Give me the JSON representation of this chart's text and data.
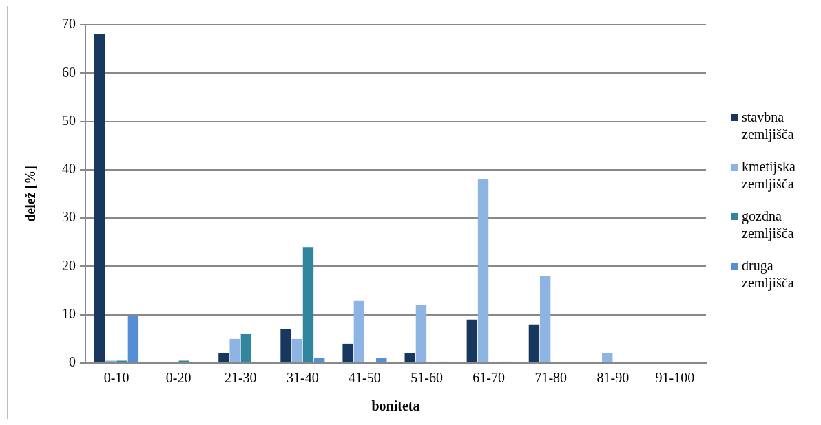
{
  "chart_data": {
    "type": "bar",
    "xlabel": "boniteta",
    "ylabel": "delež [%]",
    "categories": [
      "0-10",
      "0-20",
      "21-30",
      "31-40",
      "41-50",
      "51-60",
      "61-70",
      "71-80",
      "81-90",
      "91-100"
    ],
    "series": [
      {
        "name": "stavbna zemljišča",
        "color": "#17375e",
        "values": [
          68,
          0,
          2,
          7,
          4,
          2,
          9,
          8,
          0,
          0
        ]
      },
      {
        "name": "kmetijska zemljišča",
        "color": "#8eb4e3",
        "values": [
          0.5,
          0,
          5,
          5,
          13,
          12,
          38,
          18,
          2,
          0
        ]
      },
      {
        "name": "gozdna zemljišča",
        "color": "#31859c",
        "values": [
          0.5,
          0.5,
          6,
          24,
          0,
          0,
          0,
          0,
          0,
          0
        ]
      },
      {
        "name": "druga zemljišča",
        "color": "#558ed5",
        "values": [
          9.7,
          0,
          0,
          1,
          1,
          0.3,
          0.3,
          0,
          0,
          0
        ]
      }
    ],
    "ylim": [
      0,
      70
    ],
    "yticks": [
      0,
      10,
      20,
      30,
      40,
      50,
      60,
      70
    ],
    "grid": "y",
    "legend": "right"
  }
}
